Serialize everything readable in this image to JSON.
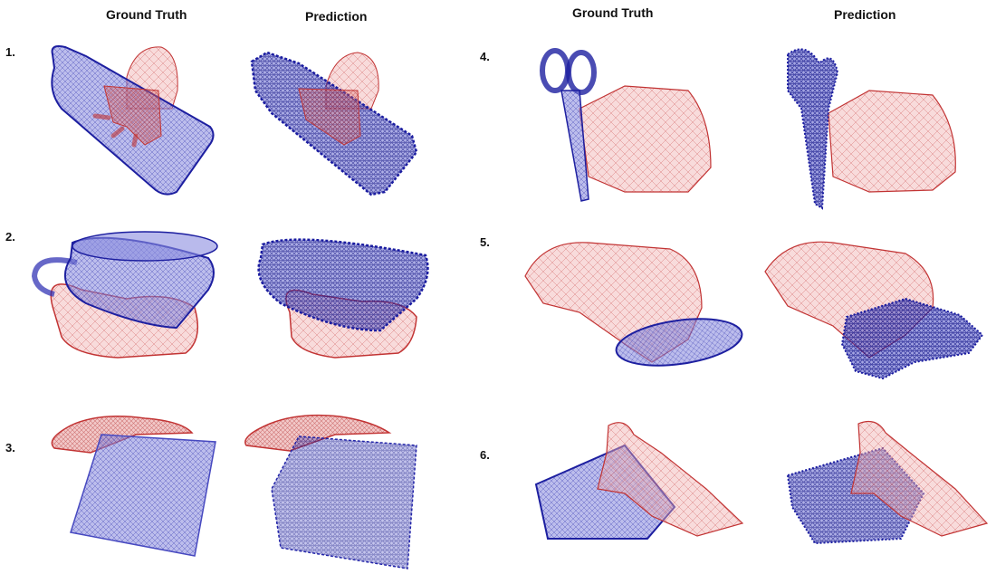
{
  "headers": {
    "left_gt": "Ground Truth",
    "left_pred": "Prediction",
    "right_gt": "Ground Truth",
    "right_pred": "Prediction"
  },
  "rows": [
    {
      "label": "1.",
      "object": "bottle"
    },
    {
      "label": "2.",
      "object": "mug"
    },
    {
      "label": "3.",
      "object": "box"
    },
    {
      "label": "4.",
      "object": "scissors"
    },
    {
      "label": "5.",
      "object": "bowl"
    },
    {
      "label": "6.",
      "object": "box"
    }
  ],
  "colors": {
    "hand_fill": "#e8a0a0",
    "hand_stroke": "#c23434",
    "object_fill": "#7d7fd8",
    "object_stroke": "#1d1fa0"
  }
}
